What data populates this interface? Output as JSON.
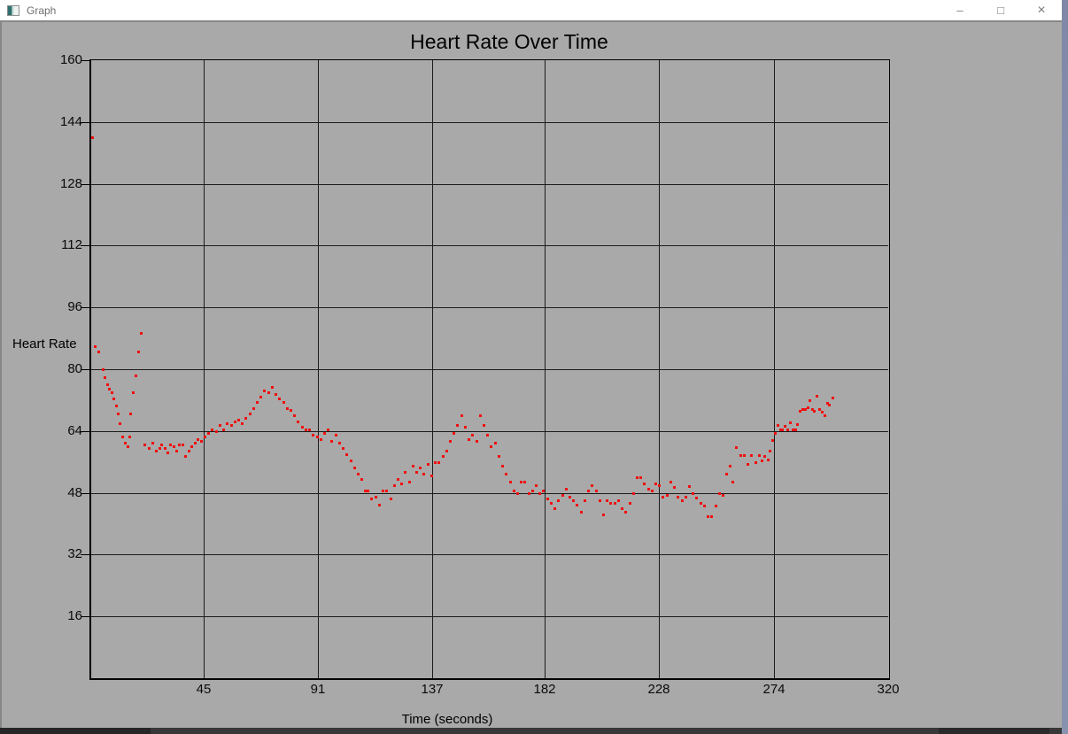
{
  "window": {
    "title": "Graph",
    "controls": {
      "minimize": "–",
      "maximize": "□",
      "close": "×"
    }
  },
  "colors": {
    "content_bg": "#a9a9a9",
    "titlebar_bg": "#ffffff",
    "titlebar_text": "#6f6f6f",
    "grid_line": "#1c1c1c",
    "axis_line": "#000000",
    "point": "#f01010",
    "desktop_edge": "#8690ac",
    "bottom_bar": "#383838"
  },
  "chart_data": {
    "type": "scatter",
    "title": "Heart Rate Over Time",
    "xlabel": "Time (seconds)",
    "ylabel": "Heart Rate",
    "xlim": [
      0,
      320
    ],
    "ylim": [
      0,
      160
    ],
    "x_ticks": [
      45,
      91,
      137,
      182,
      228,
      274,
      320
    ],
    "y_ticks": [
      16,
      32,
      48,
      64,
      80,
      96,
      112,
      128,
      144,
      160
    ],
    "grid": true,
    "legend_position": "none",
    "marker": "square",
    "marker_color": "#f01010",
    "points": [
      [
        0.5,
        140
      ],
      [
        1.5,
        86
      ],
      [
        3,
        84.5
      ],
      [
        4.5,
        80
      ],
      [
        5.5,
        78
      ],
      [
        6.5,
        76
      ],
      [
        7.2,
        75
      ],
      [
        8,
        74
      ],
      [
        9,
        72.5
      ],
      [
        10,
        70.5
      ],
      [
        10.8,
        68.5
      ],
      [
        11.5,
        66
      ],
      [
        12.5,
        62.5
      ],
      [
        13.5,
        61
      ],
      [
        14.5,
        60
      ],
      [
        15.2,
        62.5
      ],
      [
        15.8,
        68.5
      ],
      [
        16.8,
        74
      ],
      [
        17.8,
        78.5
      ],
      [
        18.8,
        84.5
      ],
      [
        19.8,
        89.5
      ],
      [
        21.5,
        60.5
      ],
      [
        23,
        59.5
      ],
      [
        24.5,
        61
      ],
      [
        26,
        59
      ],
      [
        27.2,
        59.5
      ],
      [
        28.2,
        60.5
      ],
      [
        29.5,
        59.5
      ],
      [
        30.5,
        58.5
      ],
      [
        31.8,
        60.5
      ],
      [
        33,
        60
      ],
      [
        34.2,
        59
      ],
      [
        35.2,
        60.5
      ],
      [
        36.5,
        60.5
      ],
      [
        37.8,
        57.5
      ],
      [
        39,
        59
      ],
      [
        40.2,
        60
      ],
      [
        41.5,
        61
      ],
      [
        42.8,
        62
      ],
      [
        44,
        61.5
      ],
      [
        45.5,
        62.5
      ],
      [
        47,
        63.5
      ],
      [
        48.5,
        64.5
      ],
      [
        50,
        64
      ],
      [
        51.5,
        65.5
      ],
      [
        53,
        64.5
      ],
      [
        54.5,
        66
      ],
      [
        56,
        65.5
      ],
      [
        57.5,
        66.5
      ],
      [
        59,
        67
      ],
      [
        60.5,
        66
      ],
      [
        62,
        67.5
      ],
      [
        63.5,
        68.5
      ],
      [
        65,
        70
      ],
      [
        66.5,
        71.5
      ],
      [
        68,
        73
      ],
      [
        69.5,
        74.5
      ],
      [
        71,
        74
      ],
      [
        72.5,
        75.5
      ],
      [
        74,
        73.5
      ],
      [
        75.5,
        72.5
      ],
      [
        77,
        71.5
      ],
      [
        78.5,
        70
      ],
      [
        80,
        69.5
      ],
      [
        81.5,
        68
      ],
      [
        83,
        66.5
      ],
      [
        84.5,
        65
      ],
      [
        86,
        64.5
      ],
      [
        87.5,
        64.5
      ],
      [
        89,
        63
      ],
      [
        90.5,
        62.5
      ],
      [
        92,
        62
      ],
      [
        93.5,
        63.5
      ],
      [
        95,
        64.5
      ],
      [
        96.5,
        61.5
      ],
      [
        98,
        63
      ],
      [
        99.5,
        61
      ],
      [
        101,
        59.5
      ],
      [
        102.5,
        58
      ],
      [
        104,
        56.5
      ],
      [
        105.5,
        54.5
      ],
      [
        107,
        53
      ],
      [
        108.5,
        51.5
      ],
      [
        110,
        48.5
      ],
      [
        111,
        48.5
      ],
      [
        112.5,
        46.5
      ],
      [
        114,
        47
      ],
      [
        115.5,
        45
      ],
      [
        117,
        48.5
      ],
      [
        118.5,
        48.5
      ],
      [
        120,
        46.5
      ],
      [
        121.5,
        50
      ],
      [
        123,
        51.5
      ],
      [
        124.5,
        50.5
      ],
      [
        126,
        53.5
      ],
      [
        127.5,
        51
      ],
      [
        129,
        55
      ],
      [
        130.5,
        53.5
      ],
      [
        132,
        54.5
      ],
      [
        133.5,
        53
      ],
      [
        135,
        55.5
      ],
      [
        136.5,
        52.5
      ],
      [
        138,
        56
      ],
      [
        139.5,
        56
      ],
      [
        141,
        57.5
      ],
      [
        142.5,
        59
      ],
      [
        144,
        61.5
      ],
      [
        145.5,
        63.5
      ],
      [
        147,
        65.5
      ],
      [
        148.5,
        68
      ],
      [
        150,
        65
      ],
      [
        151.5,
        62
      ],
      [
        153,
        63
      ],
      [
        154.5,
        61.5
      ],
      [
        156,
        68
      ],
      [
        157.5,
        65.5
      ],
      [
        159,
        63
      ],
      [
        160.5,
        60
      ],
      [
        162,
        61
      ],
      [
        163.5,
        57.5
      ],
      [
        165,
        55
      ],
      [
        166.5,
        53
      ],
      [
        168,
        51
      ],
      [
        169.5,
        48.5
      ],
      [
        171,
        48
      ],
      [
        172.5,
        51
      ],
      [
        174,
        51
      ],
      [
        175.5,
        48
      ],
      [
        177,
        48.5
      ],
      [
        178.5,
        50
      ],
      [
        180,
        48
      ],
      [
        181.5,
        48.5
      ],
      [
        183,
        46.5
      ],
      [
        184.5,
        45.5
      ],
      [
        186,
        44
      ],
      [
        187.5,
        46
      ],
      [
        189,
        47.5
      ],
      [
        190.5,
        49
      ],
      [
        192,
        47
      ],
      [
        193.5,
        46
      ],
      [
        195,
        45
      ],
      [
        196.5,
        43
      ],
      [
        198,
        46
      ],
      [
        199.5,
        48.5
      ],
      [
        201,
        50
      ],
      [
        202.5,
        48.5
      ],
      [
        204,
        46
      ],
      [
        205.5,
        42.5
      ],
      [
        207,
        46
      ],
      [
        208.5,
        45.5
      ],
      [
        210,
        45.5
      ],
      [
        211.5,
        46
      ],
      [
        213,
        44
      ],
      [
        214.5,
        43
      ],
      [
        216,
        45.5
      ],
      [
        217.5,
        48
      ],
      [
        219,
        52
      ],
      [
        220.5,
        52
      ],
      [
        222,
        50.5
      ],
      [
        223.5,
        49
      ],
      [
        225,
        48.5
      ],
      [
        226.5,
        50.5
      ],
      [
        228,
        50
      ],
      [
        229.5,
        47
      ],
      [
        231,
        47.5
      ],
      [
        232.5,
        51
      ],
      [
        234,
        49.5
      ],
      [
        235.5,
        47
      ],
      [
        237,
        46
      ],
      [
        238.5,
        47
      ],
      [
        240,
        49.8
      ],
      [
        241.5,
        48
      ],
      [
        243,
        46.8
      ],
      [
        244.5,
        45.3
      ],
      [
        246,
        44.6
      ],
      [
        247.5,
        42
      ],
      [
        249,
        42
      ],
      [
        250.5,
        44.6
      ],
      [
        252,
        48
      ],
      [
        253.5,
        47.5
      ],
      [
        255,
        53
      ],
      [
        256.2,
        55
      ],
      [
        257.5,
        51
      ],
      [
        259,
        59.8
      ],
      [
        260.5,
        57.8
      ],
      [
        262,
        57.8
      ],
      [
        263.5,
        55.5
      ],
      [
        265,
        57.8
      ],
      [
        266.5,
        55.9
      ],
      [
        268,
        57.8
      ],
      [
        269,
        56.4
      ],
      [
        270.3,
        57.6
      ],
      [
        271.5,
        56.6
      ],
      [
        272.5,
        58.9
      ],
      [
        273.5,
        61.7
      ],
      [
        274.5,
        63.5
      ],
      [
        275.5,
        65.6
      ],
      [
        276.5,
        64.3
      ],
      [
        277.5,
        64.3
      ],
      [
        278.5,
        65.4
      ],
      [
        279.5,
        64.3
      ],
      [
        280.5,
        66.3
      ],
      [
        281.5,
        64.3
      ],
      [
        282.5,
        64.3
      ],
      [
        283.5,
        65.9
      ],
      [
        284.5,
        69.3
      ],
      [
        285.5,
        69.7
      ],
      [
        286.5,
        69.7
      ],
      [
        287.5,
        70.1
      ],
      [
        288.3,
        72
      ],
      [
        289.3,
        69.7
      ],
      [
        290.3,
        69.3
      ],
      [
        291.3,
        73.1
      ],
      [
        292.3,
        69.7
      ],
      [
        293.3,
        69
      ],
      [
        294.3,
        68.1
      ],
      [
        295.3,
        71.3
      ],
      [
        296.3,
        70.9
      ],
      [
        297.6,
        72.7
      ]
    ]
  }
}
